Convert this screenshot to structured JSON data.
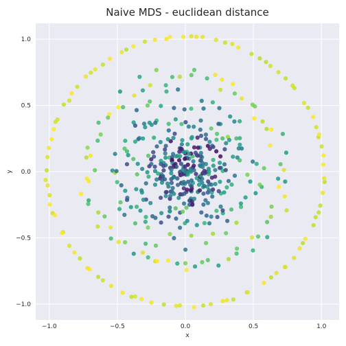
{
  "chart_data": {
    "type": "scatter",
    "title": "Naive MDS - euclidean distance",
    "xlabel": "x",
    "ylabel": "y",
    "xlim": [
      -1.1,
      1.13
    ],
    "ylim": [
      -1.12,
      1.12
    ],
    "x_ticks": [
      -1.0,
      -0.5,
      0.0,
      0.5,
      1.0
    ],
    "y_ticks": [
      -1.0,
      -0.5,
      0.0,
      0.5,
      1.0
    ],
    "x_tick_labels": [
      "−1.0",
      "−0.5",
      "0.0",
      "0.5",
      "1.0"
    ],
    "y_tick_labels": [
      "−1.0",
      "−0.5",
      "0.0",
      "0.5",
      "1.0"
    ],
    "grid": true,
    "legend": "none",
    "colormap": "viridis",
    "background": "#eaeaf2",
    "point_alpha": 0.85,
    "rings": [
      {
        "radius": 1.02,
        "count": 96,
        "color_value": 0.95,
        "jitter": 0.005
      },
      {
        "radius": 0.72,
        "count": 80,
        "color_value": 0.8,
        "jitter": 0.03
      },
      {
        "radius": 0.5,
        "count": 70,
        "color_value": 0.6,
        "jitter": 0.06
      },
      {
        "radius": 0.32,
        "count": 110,
        "color_value": 0.5,
        "jitter": 0.09
      },
      {
        "radius": 0.15,
        "count": 190,
        "color_value": 0.3,
        "jitter": 0.09
      }
    ]
  }
}
